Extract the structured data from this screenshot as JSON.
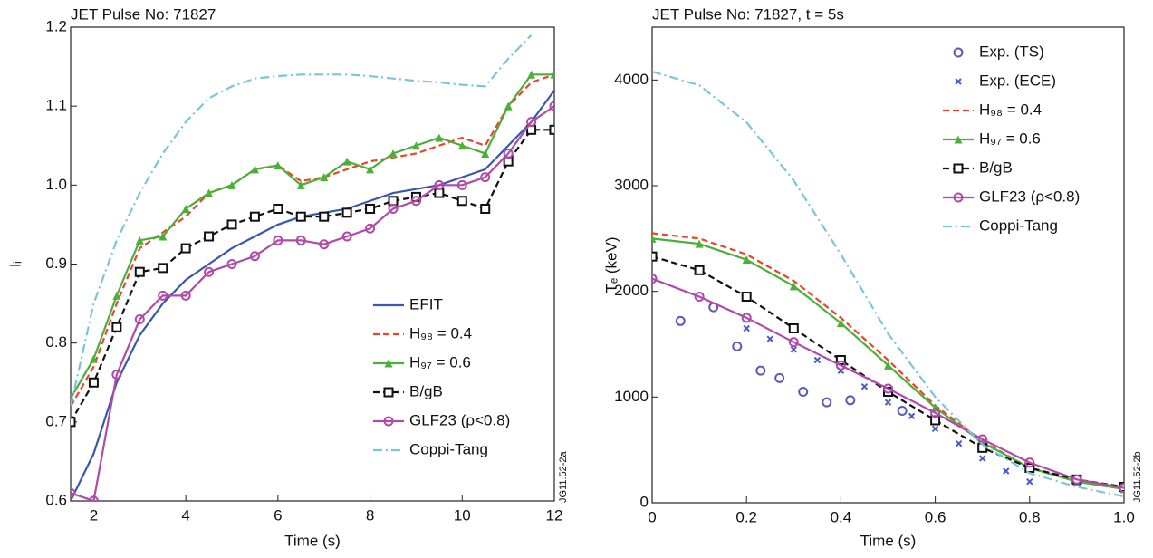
{
  "chart_data": [
    {
      "type": "line",
      "title": "JET Pulse No: 71827",
      "xlabel": "Time (s)",
      "ylabel": "lᵢ",
      "side_label": "JG11.52-2a",
      "xlim": [
        1.5,
        12
      ],
      "ylim": [
        0.6,
        1.2
      ],
      "xticks": [
        2,
        4,
        6,
        8,
        10,
        12
      ],
      "yticks": [
        0.6,
        0.7,
        0.8,
        0.9,
        {
          "value": 1,
          "label": "1.0"
        },
        1.1,
        1.2
      ],
      "legend": "lower right",
      "x": [
        1.5,
        2,
        2.5,
        3,
        3.5,
        4,
        4.5,
        5,
        5.5,
        6,
        6.5,
        7,
        7.5,
        8,
        8.5,
        9,
        9.5,
        10,
        10.5,
        11,
        11.5,
        12
      ],
      "series": [
        {
          "name": "EFIT",
          "color": "#3a56b0",
          "dash": "solid",
          "marker": "none",
          "values": [
            0.6,
            0.66,
            0.75,
            0.81,
            0.85,
            0.88,
            0.9,
            0.92,
            0.935,
            0.95,
            0.96,
            0.965,
            0.97,
            0.98,
            0.99,
            0.995,
            1.0,
            1.01,
            1.02,
            1.05,
            1.08,
            1.12
          ]
        },
        {
          "name": "H₉₈ = 0.4",
          "color": "#e8452e",
          "dash": "dashed",
          "marker": "none",
          "values": [
            0.72,
            0.77,
            0.85,
            0.92,
            0.94,
            0.96,
            0.99,
            1.0,
            1.02,
            1.025,
            1.005,
            1.01,
            1.02,
            1.03,
            1.035,
            1.04,
            1.05,
            1.06,
            1.05,
            1.1,
            1.13,
            1.14
          ]
        },
        {
          "name": "H₉₇ = 0.6",
          "color": "#4caf3a",
          "dash": "solid",
          "marker": "triangle",
          "values": [
            0.73,
            0.78,
            0.86,
            0.93,
            0.935,
            0.97,
            0.99,
            1.0,
            1.02,
            1.025,
            1.0,
            1.01,
            1.03,
            1.02,
            1.04,
            1.05,
            1.06,
            1.05,
            1.04,
            1.1,
            1.14,
            1.14
          ]
        },
        {
          "name": "B/gB",
          "color": "#111111",
          "dash": "dashed",
          "marker": "square",
          "values": [
            0.7,
            0.75,
            0.82,
            0.89,
            0.895,
            0.92,
            0.935,
            0.95,
            0.96,
            0.97,
            0.96,
            0.96,
            0.965,
            0.97,
            0.98,
            0.985,
            0.99,
            0.98,
            0.97,
            1.03,
            1.07,
            1.07
          ]
        },
        {
          "name": "GLF23 (ρ<0.8)",
          "color": "#b04aa8",
          "dash": "solid",
          "marker": "circle",
          "values": [
            0.61,
            0.6,
            0.76,
            0.83,
            0.86,
            0.86,
            0.89,
            0.9,
            0.91,
            0.93,
            0.93,
            0.925,
            0.935,
            0.945,
            0.97,
            0.98,
            1.0,
            1.0,
            1.01,
            1.04,
            1.08,
            1.1
          ]
        },
        {
          "name": "Coppi-Tang",
          "color": "#7cc4dc",
          "dash": "dashdot",
          "marker": "none",
          "values": [
            0.72,
            0.85,
            0.93,
            0.99,
            1.04,
            1.08,
            1.11,
            1.125,
            1.135,
            1.138,
            1.14,
            1.14,
            1.14,
            1.138,
            1.135,
            1.132,
            1.13,
            1.127,
            1.125,
            1.16,
            1.19,
            null
          ]
        }
      ]
    },
    {
      "type": "line",
      "title": "JET Pulse No: 71827, t = 5s",
      "xlabel": "Time (s)",
      "ylabel": "Tₑ (keV)",
      "side_label": "JG11.52-2b",
      "xlim": [
        0,
        1
      ],
      "ylim": [
        0,
        4500
      ],
      "xticks": [
        0,
        0.2,
        0.4,
        0.6,
        0.8,
        {
          "value": 1,
          "label": "1.0"
        }
      ],
      "yticks": [
        0,
        1000,
        2000,
        3000,
        4000
      ],
      "legend": "upper right",
      "x": [
        0,
        0.1,
        0.2,
        0.3,
        0.4,
        0.5,
        0.6,
        0.7,
        0.8,
        0.9,
        1.0
      ],
      "series": [
        {
          "name": "Exp. (TS)",
          "color": "#5a5ab8",
          "kind": "scatter",
          "marker": "circle",
          "x": [
            0.06,
            0.13,
            0.18,
            0.23,
            0.27,
            0.32,
            0.37,
            0.42,
            0.53
          ],
          "values": [
            1720,
            1850,
            1480,
            1250,
            1180,
            1050,
            950,
            970,
            870
          ]
        },
        {
          "name": "Exp. (ECE)",
          "color": "#4a5ac8",
          "kind": "scatter",
          "marker": "x",
          "x": [
            0.2,
            0.25,
            0.3,
            0.35,
            0.4,
            0.45,
            0.5,
            0.55,
            0.6,
            0.65,
            0.7,
            0.75,
            0.8
          ],
          "values": [
            1650,
            1550,
            1450,
            1350,
            1250,
            1100,
            950,
            820,
            700,
            560,
            420,
            300,
            200
          ]
        },
        {
          "name": "H₉₈ = 0.4",
          "color": "#e8452e",
          "dash": "dashed",
          "marker": "none",
          "values": [
            2550,
            2500,
            2350,
            2100,
            1750,
            1350,
            920,
            580,
            330,
            200,
            130
          ]
        },
        {
          "name": "H₉₇ = 0.6",
          "color": "#4caf3a",
          "dash": "solid",
          "marker": "triangle",
          "values": [
            2500,
            2450,
            2300,
            2050,
            1700,
            1300,
            900,
            570,
            330,
            200,
            130
          ]
        },
        {
          "name": "B/gB",
          "color": "#111111",
          "dash": "dashed",
          "marker": "square",
          "values": [
            2330,
            2200,
            1950,
            1650,
            1350,
            1050,
            780,
            520,
            330,
            220,
            150
          ]
        },
        {
          "name": "GLF23 (ρ<0.8)",
          "color": "#b04aa8",
          "dash": "solid",
          "marker": "circle",
          "values": [
            2120,
            1950,
            1750,
            1520,
            1300,
            1080,
            850,
            600,
            380,
            220,
            140
          ]
        },
        {
          "name": "Coppi-Tang",
          "color": "#7cc4dc",
          "dash": "dashdot",
          "marker": "none",
          "values": [
            4080,
            3950,
            3600,
            3050,
            2350,
            1600,
            1000,
            550,
            280,
            150,
            60
          ]
        }
      ]
    }
  ]
}
